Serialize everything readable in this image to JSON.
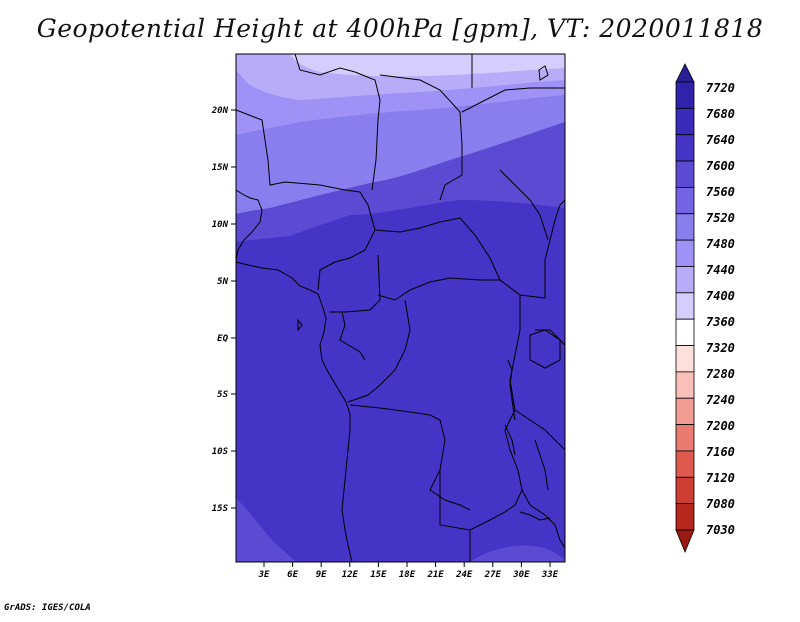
{
  "title": "Geopotential Height at 400hPa [gpm], VT: 2020011818",
  "credit": "GrADS: IGES/COLA",
  "colors": {
    "c7480": "#9f91f6",
    "c7520": "#8a7ded",
    "c7560": "#7463e2",
    "c7600": "#5c4ad3",
    "c7640": "#4634c6",
    "c7440": "#b8acf9",
    "c7400": "#d5cefc",
    "coast": "#000000"
  },
  "lat_labels": [
    "20N",
    "15N",
    "10N",
    "5N",
    "EQ",
    "5S",
    "10S",
    "15S"
  ],
  "lon_labels": [
    "3E",
    "6E",
    "9E",
    "12E",
    "15E",
    "18E",
    "21E",
    "24E",
    "27E",
    "30E",
    "33E"
  ],
  "colorbar": {
    "labels": [
      "7720",
      "7680",
      "7640",
      "7600",
      "7560",
      "7520",
      "7480",
      "7440",
      "7400",
      "7360",
      "7320",
      "7280",
      "7240",
      "7200",
      "7160",
      "7120",
      "7080",
      "7030"
    ],
    "colors": [
      "#2a1e96",
      "#3222ab",
      "#3a2bbd",
      "#4634c6",
      "#5c4ad3",
      "#7463e2",
      "#8a7ded",
      "#9f91f6",
      "#b8acf9",
      "#d5cefc",
      "#ffffff",
      "#fde0dc",
      "#f9c0b9",
      "#f19d94",
      "#e97b70",
      "#de5a4f",
      "#cf3e33",
      "#b8271d",
      "#9a1a12"
    ]
  }
}
